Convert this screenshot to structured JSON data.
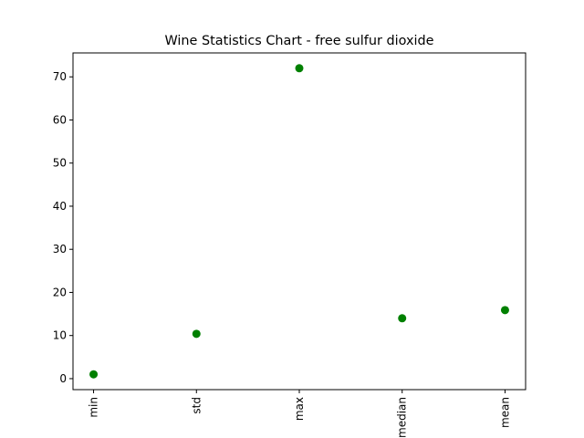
{
  "chart_data": {
    "type": "scatter",
    "title": "Wine Statistics Chart - free sulfur dioxide",
    "xlabel": "",
    "ylabel": "",
    "categories": [
      "min",
      "std",
      "max",
      "median",
      "mean"
    ],
    "values": [
      1.0,
      10.4,
      72.0,
      14.0,
      15.9
    ],
    "ylim": [
      -2.55,
      75.55
    ],
    "yticks": [
      0,
      10,
      20,
      30,
      40,
      50,
      60,
      70
    ],
    "x_tick_rotation": "vertical",
    "grid": false,
    "legend": "none",
    "marker_color": "#008000"
  }
}
